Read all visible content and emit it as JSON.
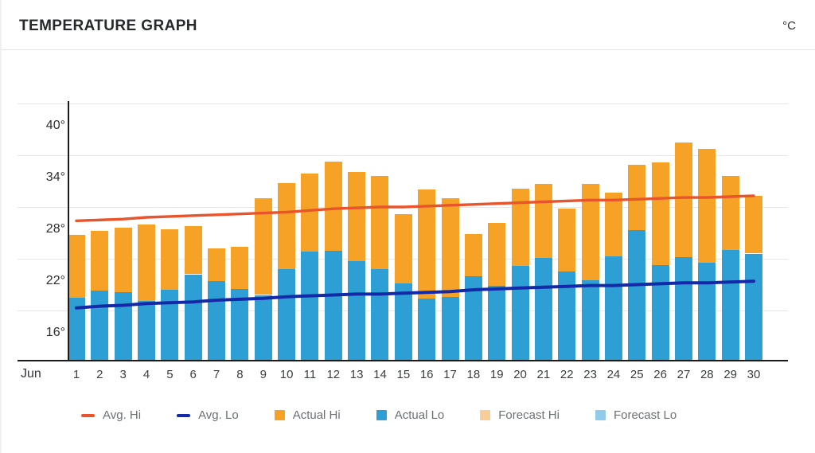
{
  "header": {
    "title": "TEMPERATURE GRAPH",
    "unit": "°C"
  },
  "x_axis": {
    "month": "Jun",
    "days": [
      "1",
      "2",
      "3",
      "4",
      "5",
      "6",
      "7",
      "8",
      "9",
      "10",
      "11",
      "12",
      "13",
      "14",
      "15",
      "16",
      "17",
      "18",
      "19",
      "20",
      "21",
      "22",
      "23",
      "24",
      "25",
      "26",
      "27",
      "28",
      "29",
      "30"
    ]
  },
  "y_axis": {
    "tick_labels": [
      "40°",
      "34°",
      "28°",
      "22°",
      "16°"
    ],
    "tick_values": [
      40,
      34,
      28,
      22,
      16
    ]
  },
  "legend": [
    {
      "label": "Avg. Hi",
      "swatch": "line",
      "color": "#e8542c"
    },
    {
      "label": "Avg. Lo",
      "swatch": "line",
      "color": "#1429a8"
    },
    {
      "label": "Actual Hi",
      "swatch": "box",
      "color": "#f5a226"
    },
    {
      "label": "Actual Lo",
      "swatch": "box",
      "color": "#2e9fd4"
    },
    {
      "label": "Forecast Hi",
      "swatch": "box",
      "color": "#f8cd98"
    },
    {
      "label": "Forecast Lo",
      "swatch": "box",
      "color": "#92cbea"
    }
  ],
  "colors": {
    "actual_hi": "#f5a226",
    "actual_lo": "#2e9fd4",
    "avg_hi": "#e8542c",
    "avg_lo": "#1429a8",
    "forecast_hi": "#f8cd98",
    "forecast_lo": "#92cbea",
    "grid": "#e7e7e7",
    "axis": "#1b1b1b"
  },
  "chart_data": {
    "type": "bar",
    "title": "TEMPERATURE GRAPH",
    "ylabel": "°C",
    "xlabel": "Jun",
    "ylim": [
      10,
      40
    ],
    "grid": true,
    "legend_position": "bottom",
    "categories": [
      "1",
      "2",
      "3",
      "4",
      "5",
      "6",
      "7",
      "8",
      "9",
      "10",
      "11",
      "12",
      "13",
      "14",
      "15",
      "16",
      "17",
      "18",
      "19",
      "20",
      "21",
      "22",
      "23",
      "24",
      "25",
      "26",
      "27",
      "28",
      "29",
      "30"
    ],
    "series": [
      {
        "name": "Actual Hi",
        "type": "bar",
        "stack": "top",
        "values": [
          24.8,
          25.2,
          25.6,
          26.0,
          25.4,
          25.8,
          23.2,
          23.4,
          29.0,
          30.8,
          31.9,
          33.3,
          32.1,
          31.6,
          27.2,
          30.0,
          29.0,
          24.9,
          26.2,
          30.1,
          30.7,
          27.8,
          30.7,
          29.7,
          32.9,
          33.2,
          35.5,
          34.7,
          31.6,
          29.3
        ]
      },
      {
        "name": "Actual Lo",
        "type": "bar",
        "stack": "bottom",
        "values": [
          17.5,
          18.3,
          18.1,
          17.1,
          18.4,
          20.2,
          19.4,
          18.5,
          17.8,
          20.8,
          22.8,
          22.9,
          21.7,
          20.8,
          19.1,
          17.4,
          17.6,
          20.0,
          18.9,
          21.2,
          22.1,
          20.5,
          19.5,
          22.3,
          25.3,
          21.3,
          22.2,
          21.5,
          23.0,
          22.6
        ]
      },
      {
        "name": "Avg. Hi",
        "type": "line",
        "values": [
          26.4,
          26.5,
          26.6,
          26.8,
          26.9,
          27.0,
          27.1,
          27.2,
          27.3,
          27.4,
          27.6,
          27.8,
          27.9,
          28.0,
          28.0,
          28.1,
          28.2,
          28.3,
          28.4,
          28.5,
          28.6,
          28.7,
          28.8,
          28.8,
          28.9,
          29.0,
          29.1,
          29.1,
          29.2,
          29.3
        ]
      },
      {
        "name": "Avg. Lo",
        "type": "line",
        "values": [
          16.3,
          16.5,
          16.6,
          16.8,
          16.9,
          17.0,
          17.2,
          17.3,
          17.4,
          17.6,
          17.7,
          17.8,
          17.9,
          17.9,
          18.0,
          18.1,
          18.2,
          18.4,
          18.5,
          18.6,
          18.7,
          18.8,
          18.9,
          18.9,
          19.0,
          19.1,
          19.2,
          19.2,
          19.3,
          19.4
        ]
      },
      {
        "name": "Forecast Hi",
        "type": "bar",
        "values": []
      },
      {
        "name": "Forecast Lo",
        "type": "bar",
        "values": []
      }
    ]
  }
}
